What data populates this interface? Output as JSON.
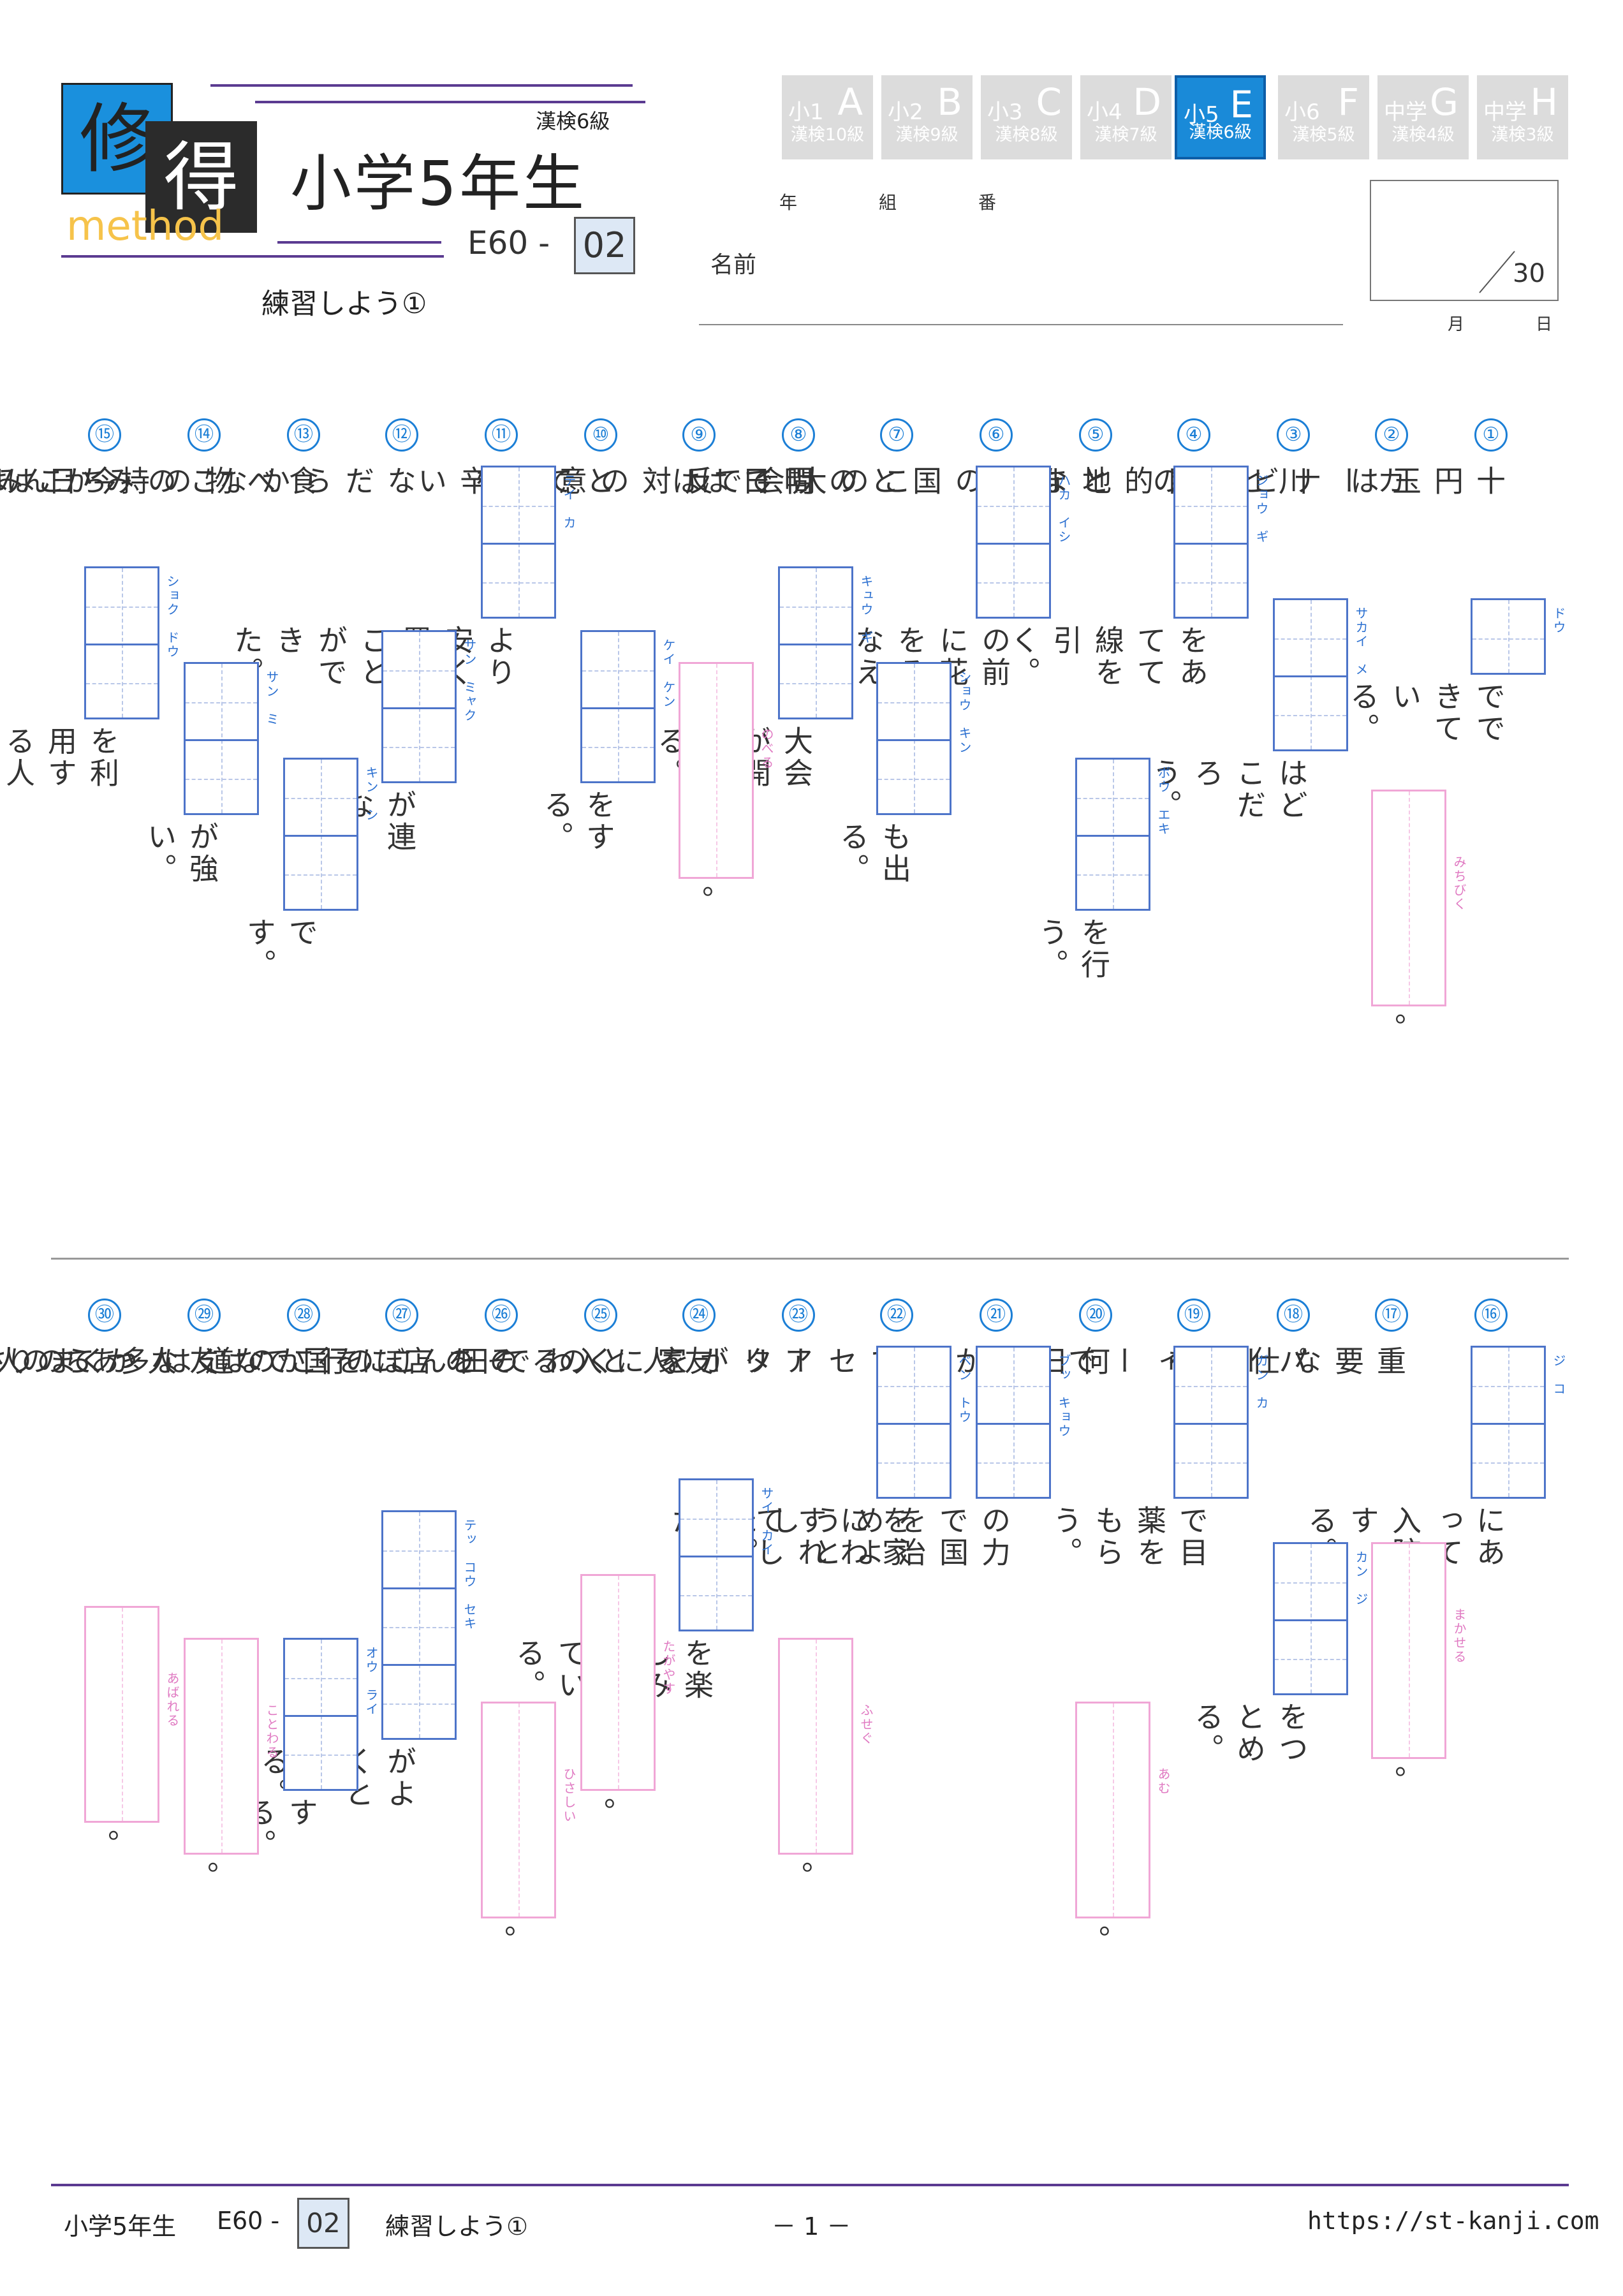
{
  "header": {
    "logo_char1": "修",
    "logo_char2": "得",
    "logo_method": "method",
    "kanken": "漢検6級",
    "title": "小学5年生",
    "code": "E60 -",
    "code_box": "02",
    "subtitle": "練習しよう①",
    "nen": "年",
    "kumi": "組",
    "ban": "番",
    "name_label": "名前",
    "score_denominator": "30",
    "month": "月",
    "day": "日"
  },
  "levels": [
    {
      "grade": "小1",
      "letter": "A",
      "kanken": "漢検10級",
      "active": false
    },
    {
      "grade": "小2",
      "letter": "B",
      "kanken": "漢検9級",
      "active": false
    },
    {
      "grade": "小3",
      "letter": "C",
      "kanken": "漢検8級",
      "active": false
    },
    {
      "grade": "小4",
      "letter": "D",
      "kanken": "漢検7級",
      "active": false
    },
    {
      "grade": "小5",
      "letter": "E",
      "kanken": "漢検6級",
      "active": true
    },
    {
      "grade": "小6",
      "letter": "F",
      "kanken": "漢検5級",
      "active": false
    },
    {
      "grade": "中学",
      "letter": "G",
      "kanken": "漢検4級",
      "active": false
    },
    {
      "grade": "中学",
      "letter": "H",
      "kanken": "漢検3級",
      "active": false
    }
  ],
  "questions": [
    {
      "num": "①",
      "pre": "十円玉は",
      "furi": "ドウ",
      "post": "でできている。",
      "pink": false
    },
    {
      "num": "②",
      "pre": "カーナビが目的地まで",
      "furi": "みちびく",
      "post": "。",
      "pink": true
    },
    {
      "num": "③",
      "pre": "川と海の",
      "furi": "サカイ　メ",
      "post": "はどこだろう。",
      "pink": false
    },
    {
      "num": "④",
      "pre": "",
      "furi": "ジョウ　ギ",
      "post": "をあてて線を引く。",
      "pink": false
    },
    {
      "num": "⑤",
      "pre": "となりの国との間で",
      "furi": "ボウ　エキ",
      "post": "を行う。",
      "pink": false
    },
    {
      "num": "⑥",
      "pre": "",
      "furi": "ハカ　イシ",
      "post": "の前に花をそなえる。",
      "pink": false
    },
    {
      "num": "⑦",
      "pre": "この大会では",
      "furi": "ショウ　キン",
      "post": "も出る。",
      "pink": false
    },
    {
      "num": "⑧",
      "pre": "明日は",
      "furi": "キュウ　ギ",
      "post": "大会が開かれる。",
      "pink": false
    },
    {
      "num": "⑨",
      "pre": "反対の意見を",
      "furi": "のべる",
      "post": "。",
      "pink": true
    },
    {
      "num": "⑩",
      "pre": "とても辛い",
      "furi": "ケイ　ケン",
      "post": "をする。",
      "pink": false
    },
    {
      "num": "⑪",
      "pre": "",
      "furi": "テイ　カ",
      "post": "より安く買うことができた。",
      "pink": false
    },
    {
      "num": "⑫",
      "pre": "なだらかな",
      "furi": "サン　ミャク",
      "post": "が連なる。",
      "pink": false
    },
    {
      "num": "⑬",
      "pre": "食べ物の持ちこみは",
      "furi": "キン　シ",
      "post": "です。",
      "pink": false
    },
    {
      "num": "⑭",
      "pre": "このみかんは",
      "furi": "サン　ミ",
      "post": "が強い。",
      "pink": false
    },
    {
      "num": "⑮",
      "pre": "今日は",
      "furi": "ショク　ドウ",
      "post": "を利用する人が多い。",
      "pink": false
    },
    {
      "num": "⑯",
      "pre": "",
      "furi": "ジ　コ",
      "post": "にあって入院する。",
      "pink": false
    },
    {
      "num": "⑰",
      "pre": "重要な仕事を",
      "furi": "まかせる",
      "post": "。",
      "pink": true
    },
    {
      "num": "⑱",
      "pre": "パーティーで",
      "furi": "カン　ジ",
      "post": "をつとめる。",
      "pink": false
    },
    {
      "num": "⑲",
      "pre": "",
      "furi": "ガン　カ",
      "post": "で目薬をもらう。",
      "pink": false
    },
    {
      "num": "⑳",
      "pre": "何日もかけてセーターを",
      "furi": "あむ",
      "post": "。",
      "pink": true
    },
    {
      "num": "㉑",
      "pre": "",
      "furi": "ブッ　キョウ",
      "post": "の力で国を治めようとした。",
      "pink": false
    },
    {
      "num": "㉒",
      "pre": "",
      "furi": "ベン　トウ",
      "post": "を家にわすれてしまった。",
      "pink": false
    },
    {
      "num": "㉓",
      "pre": "アリが家に入るのを",
      "furi": "ふせぐ",
      "post": "。",
      "pink": true
    },
    {
      "num": "㉔",
      "pre": "友人との",
      "furi": "サイ　カイ",
      "post": "を楽しみにしている。",
      "pink": false
    },
    {
      "num": "㉕",
      "pre": "くわで田んぼを",
      "furi": "たがやす",
      "post": "。",
      "pink": true
    },
    {
      "num": "㉖",
      "pre": "その店に行かなくなって",
      "furi": "ひさしい",
      "post": "。",
      "pink": true
    },
    {
      "num": "㉗",
      "pre": "この国では",
      "furi": "テッ　コウ　セキ",
      "post": "がよくとれる。",
      "pink": false
    },
    {
      "num": "㉘",
      "pre": "この道は多くの人が",
      "furi": "オウ　ライ",
      "post": "する。",
      "pink": false
    },
    {
      "num": "㉙",
      "pre": "友人からのさそいを",
      "furi": "ことわる",
      "post": "。",
      "pink": true
    },
    {
      "num": "㉚",
      "pre": "あまりの苦しさで",
      "furi": "あばれる",
      "post": "。",
      "pink": true
    }
  ],
  "footer": {
    "grade": "小学5年生",
    "code": "E60 -",
    "code_box": "02",
    "title": "練習しよう①",
    "page": "－ 1 －",
    "url": "https://st-kanji.com"
  }
}
